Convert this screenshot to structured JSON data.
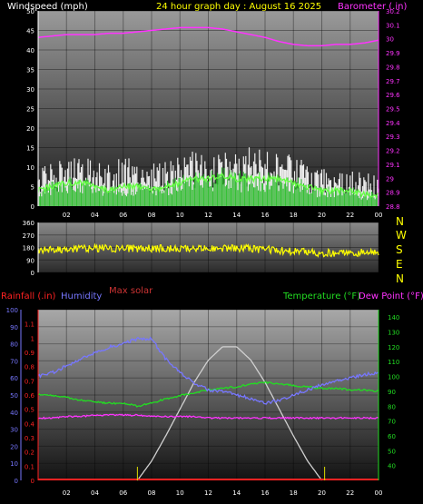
{
  "header": {
    "wind_label": "Windspeed (mph)",
    "date_label": "24 hour graph day : August 16 2025",
    "baro_label": "Barometer (.in)"
  },
  "labels": {
    "rainfall": "Rainfall (.in)",
    "humidity": "Humidity",
    "max_solar": "Max solar",
    "temperature": "Temperature (°F)",
    "dew_point": "Dew Point (°F)"
  },
  "colors": {
    "wind_label": "#ffffff",
    "date_label": "#ffff00",
    "barometer": "#ff33ff",
    "wind_gust": "#ffffff",
    "wind_avg": "#22bb22",
    "wind_avg_bright": "#66ff44",
    "direction": "#ffff00",
    "rainfall": "#ff2222",
    "humidity": "#7777ff",
    "max_solar": "#d0d0d0",
    "temperature": "#22dd22",
    "dew_point": "#ff33ff",
    "max_solar_label": "#cc3333"
  },
  "x_ticks": [
    "02",
    "04",
    "06",
    "08",
    "10",
    "12",
    "14",
    "16",
    "18",
    "20",
    "22",
    "00"
  ],
  "compass": [
    "N",
    "W",
    "S",
    "E",
    "N"
  ],
  "chart_data": [
    {
      "type": "line",
      "name": "wind-barometer",
      "x_range": [
        0,
        24
      ],
      "y_left": {
        "label": "Windspeed (mph)",
        "range": [
          0,
          50
        ],
        "ticks": [
          0,
          5,
          10,
          15,
          20,
          25,
          30,
          35,
          40,
          45,
          50
        ]
      },
      "y_right": {
        "label": "Barometer (.in)",
        "range": [
          28.8,
          30.2
        ],
        "ticks": [
          "28.8",
          "28.9",
          "29",
          "29.1",
          "29.2",
          "29.3",
          "29.4",
          "29.5",
          "29.6",
          "29.7",
          "29.8",
          "29.9",
          "30",
          "30.1",
          "30.2"
        ]
      },
      "series": [
        {
          "key": "barometer",
          "axis": "right",
          "x": [
            0,
            1,
            2,
            3,
            4,
            5,
            6,
            7,
            8,
            9,
            10,
            11,
            12,
            13,
            14,
            15,
            16,
            17,
            18,
            19,
            20,
            21,
            22,
            23,
            24
          ],
          "values": [
            30.01,
            30.02,
            30.03,
            30.03,
            30.03,
            30.04,
            30.04,
            30.05,
            30.06,
            30.07,
            30.08,
            30.08,
            30.08,
            30.07,
            30.05,
            30.03,
            30.01,
            29.98,
            29.96,
            29.95,
            29.95,
            29.96,
            29.96,
            29.97,
            29.99
          ]
        },
        {
          "key": "wind_gust",
          "axis": "left",
          "x": [
            0,
            1,
            2,
            3,
            4,
            5,
            6,
            7,
            8,
            9,
            10,
            11,
            12,
            13,
            14,
            15,
            16,
            17,
            18,
            19,
            20,
            21,
            22,
            23,
            24
          ],
          "values": [
            9,
            10,
            11,
            12,
            11,
            10,
            12,
            11,
            10,
            11,
            12,
            13,
            12,
            13,
            12,
            14,
            13,
            13,
            12,
            10,
            9,
            9,
            9,
            8,
            7
          ]
        },
        {
          "key": "wind_avg",
          "axis": "left",
          "x": [
            0,
            1,
            2,
            3,
            4,
            5,
            6,
            7,
            8,
            9,
            10,
            11,
            12,
            13,
            14,
            15,
            16,
            17,
            18,
            19,
            20,
            21,
            22,
            23,
            24
          ],
          "values": [
            4,
            5,
            6,
            6,
            5,
            4,
            5,
            5,
            4,
            5,
            6,
            7,
            7,
            8,
            7,
            7,
            7,
            7,
            6,
            5,
            4,
            4,
            4,
            3,
            3
          ]
        }
      ]
    },
    {
      "type": "scatter",
      "name": "wind-direction",
      "x_range": [
        0,
        24
      ],
      "y": {
        "range": [
          0,
          360
        ],
        "ticks": [
          0,
          90,
          180,
          270,
          360
        ]
      },
      "series": [
        {
          "key": "direction",
          "x": [
            0,
            2,
            4,
            6,
            8,
            10,
            12,
            14,
            16,
            18,
            20,
            22,
            24
          ],
          "values": [
            160,
            165,
            175,
            170,
            175,
            170,
            170,
            175,
            165,
            150,
            140,
            140,
            150
          ]
        }
      ]
    },
    {
      "type": "line",
      "name": "temp-humidity",
      "x_range": [
        0,
        24
      ],
      "y_far_left": {
        "label": "Humidity",
        "range": [
          0,
          100
        ],
        "ticks": [
          0,
          10,
          20,
          30,
          40,
          50,
          60,
          70,
          80,
          90,
          100
        ]
      },
      "y_left": {
        "label": "Rainfall (.in)",
        "range": [
          0,
          1.2
        ],
        "ticks": [
          "0",
          "0.1",
          "0.2",
          "0.3",
          "0.4",
          "0.5",
          "0.6",
          "0.7",
          "0.8",
          "0.9",
          "1",
          "1.1"
        ]
      },
      "y_right": {
        "label": "Temperature (°F)",
        "range": [
          30,
          145
        ],
        "ticks": [
          40,
          50,
          60,
          70,
          80,
          90,
          100,
          110,
          120,
          130,
          140
        ]
      },
      "series": [
        {
          "key": "humidity",
          "axis": "far_left",
          "x": [
            0,
            1,
            2,
            3,
            4,
            5,
            6,
            7,
            8,
            9,
            10,
            11,
            12,
            13,
            14,
            15,
            16,
            17,
            18,
            19,
            20,
            21,
            22,
            23,
            24
          ],
          "values": [
            61,
            63,
            67,
            71,
            75,
            78,
            80,
            83,
            83,
            71,
            63,
            57,
            53,
            52,
            50,
            48,
            45,
            47,
            50,
            53,
            56,
            58,
            60,
            62,
            63
          ]
        },
        {
          "key": "temperature",
          "axis": "right",
          "x": [
            0,
            1,
            2,
            3,
            4,
            5,
            6,
            7,
            8,
            9,
            10,
            11,
            12,
            13,
            14,
            15,
            16,
            17,
            18,
            19,
            20,
            21,
            22,
            23,
            24
          ],
          "values": [
            88,
            87,
            86,
            84,
            83,
            82,
            82,
            80,
            82,
            85,
            87,
            89,
            91,
            92,
            93,
            95,
            96,
            95,
            94,
            93,
            92,
            92,
            91,
            91,
            90
          ]
        },
        {
          "key": "dew_point",
          "axis": "right",
          "x": [
            0,
            1,
            2,
            3,
            4,
            5,
            6,
            7,
            8,
            9,
            10,
            11,
            12,
            13,
            14,
            15,
            16,
            17,
            18,
            19,
            20,
            21,
            22,
            23,
            24
          ],
          "values": [
            72,
            72,
            73,
            73,
            74,
            74,
            74,
            74,
            73,
            73,
            73,
            73,
            72,
            72,
            72,
            72,
            72,
            72,
            72,
            72,
            72,
            72,
            72,
            72,
            72
          ]
        },
        {
          "key": "max_solar",
          "axis": "right",
          "x": [
            7,
            8,
            9,
            10,
            11,
            12,
            13,
            14,
            15,
            16,
            17,
            18,
            19,
            20
          ],
          "values": [
            30,
            43,
            60,
            78,
            96,
            111,
            120,
            120,
            111,
            96,
            78,
            60,
            43,
            30
          ]
        },
        {
          "key": "rainfall",
          "axis": "left",
          "x": [
            0,
            24
          ],
          "values": [
            0,
            0
          ]
        }
      ],
      "markers_x": [
        7,
        20.2
      ]
    }
  ]
}
